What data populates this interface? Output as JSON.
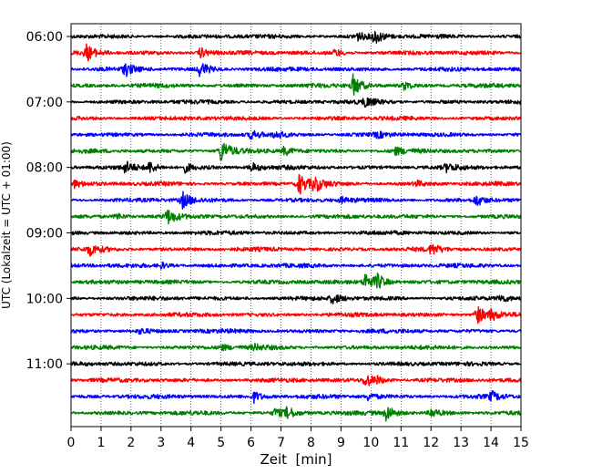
{
  "chart_data": {
    "type": "line",
    "title": "",
    "xlabel": "Zeit  [min]",
    "ylabel": "UTC (Lokalzeit = UTC + 01:00)",
    "xlim": [
      0,
      15
    ],
    "x_ticks": [
      "0",
      "1",
      "2",
      "3",
      "4",
      "5",
      "6",
      "7",
      "8",
      "9",
      "10",
      "11",
      "12",
      "13",
      "14",
      "15"
    ],
    "y_ticks": [
      {
        "label": "06:00",
        "trace_index": 0
      },
      {
        "label": "07:00",
        "trace_index": 4
      },
      {
        "label": "08:00",
        "trace_index": 8
      },
      {
        "label": "09:00",
        "trace_index": 12
      },
      {
        "label": "10:00",
        "trace_index": 16
      },
      {
        "label": "11:00",
        "trace_index": 20
      }
    ],
    "grid": {
      "vertical_minutes": true,
      "style": "dotted"
    },
    "trace_minutes": 15,
    "trace_color_cycle": [
      "#000000",
      "#ff0000",
      "#0000ff",
      "#008000"
    ],
    "traces": [
      {
        "events": [
          {
            "t": 9.5,
            "a": 0.5
          },
          {
            "t": 10.1,
            "a": 0.8
          }
        ]
      },
      {
        "events": [
          {
            "t": 0.5,
            "a": 0.9
          },
          {
            "t": 4.3,
            "a": 0.6
          },
          {
            "t": 8.8,
            "a": 0.4
          }
        ]
      },
      {
        "events": [
          {
            "t": 1.8,
            "a": 0.7
          },
          {
            "t": 4.3,
            "a": 0.9
          }
        ]
      },
      {
        "events": [
          {
            "t": 9.4,
            "a": 1.2
          },
          {
            "t": 11.1,
            "a": 0.4
          }
        ]
      },
      {
        "events": [
          {
            "t": 9.8,
            "a": 0.5
          }
        ]
      },
      {
        "events": []
      },
      {
        "events": [
          {
            "t": 6.0,
            "a": 0.5
          },
          {
            "t": 6.8,
            "a": 0.4
          },
          {
            "t": 10.2,
            "a": 0.3
          }
        ]
      },
      {
        "events": [
          {
            "t": 5.0,
            "a": 1.3
          },
          {
            "t": 7.1,
            "a": 0.5
          },
          {
            "t": 10.8,
            "a": 0.4
          }
        ]
      },
      {
        "events": [
          {
            "t": 1.8,
            "a": 0.6
          },
          {
            "t": 2.6,
            "a": 0.6
          },
          {
            "t": 3.8,
            "a": 0.5
          },
          {
            "t": 6.0,
            "a": 0.5
          },
          {
            "t": 12.5,
            "a": 0.4
          }
        ]
      },
      {
        "events": [
          {
            "t": 0.1,
            "a": 0.4
          },
          {
            "t": 7.6,
            "a": 1.2
          },
          {
            "t": 8.1,
            "a": 0.8
          },
          {
            "t": 11.5,
            "a": 0.3
          }
        ]
      },
      {
        "events": [
          {
            "t": 3.7,
            "a": 0.9
          },
          {
            "t": 9.0,
            "a": 0.3
          },
          {
            "t": 13.5,
            "a": 0.6
          }
        ]
      },
      {
        "events": [
          {
            "t": 3.2,
            "a": 0.8
          },
          {
            "t": 1.5,
            "a": 0.4
          }
        ]
      },
      {
        "events": []
      },
      {
        "events": [
          {
            "t": 0.6,
            "a": 0.6
          },
          {
            "t": 12.0,
            "a": 0.6
          }
        ]
      },
      {
        "events": [
          {
            "t": 3.0,
            "a": 0.3
          }
        ]
      },
      {
        "events": [
          {
            "t": 9.8,
            "a": 1.0
          },
          {
            "t": 10.2,
            "a": 0.8
          }
        ]
      },
      {
        "events": [
          {
            "t": 8.7,
            "a": 0.6
          },
          {
            "t": 14.3,
            "a": 0.4
          }
        ]
      },
      {
        "events": [
          {
            "t": 13.5,
            "a": 1.2
          },
          {
            "t": 14.0,
            "a": 0.5
          }
        ]
      },
      {
        "events": [
          {
            "t": 2.3,
            "a": 0.3
          }
        ]
      },
      {
        "events": [
          {
            "t": 5.0,
            "a": 0.3
          },
          {
            "t": 6.1,
            "a": 0.3
          }
        ]
      },
      {
        "events": []
      },
      {
        "events": [
          {
            "t": 9.8,
            "a": 0.8
          },
          {
            "t": 10.2,
            "a": 0.3
          }
        ]
      },
      {
        "events": [
          {
            "t": 6.1,
            "a": 0.6
          },
          {
            "t": 9.9,
            "a": 0.4
          },
          {
            "t": 14.0,
            "a": 0.5
          }
        ]
      },
      {
        "events": [
          {
            "t": 6.8,
            "a": 0.5
          },
          {
            "t": 7.2,
            "a": 0.6
          },
          {
            "t": 10.5,
            "a": 0.9
          },
          {
            "t": 12.0,
            "a": 0.5
          }
        ]
      }
    ]
  }
}
